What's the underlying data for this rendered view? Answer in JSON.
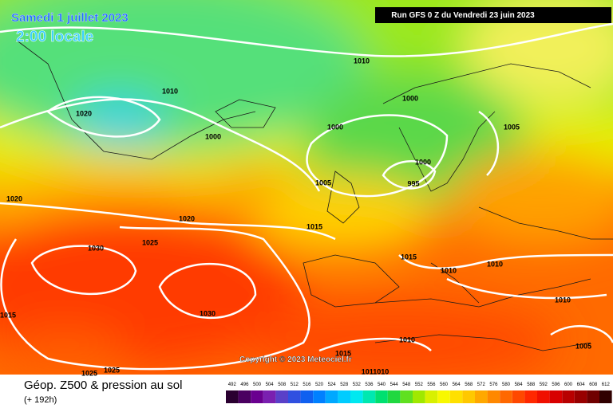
{
  "header": {
    "date": "Samedi 1 juillet 2023",
    "time": "2:00 locale",
    "run": "Run GFS 0 Z du Vendredi 23 juin 2023"
  },
  "copyright": "Copyright © 2023 Meteociel.fr",
  "footer": {
    "title": "Géop. Z500 & pression au sol",
    "lead": "(+ 192h)"
  },
  "scale": [
    492,
    496,
    500,
    504,
    508,
    512,
    516,
    520,
    524,
    528,
    532,
    536,
    540,
    544,
    548,
    552,
    556,
    560,
    564,
    568,
    572,
    576,
    580,
    584,
    588,
    592,
    596,
    600,
    604,
    608,
    612
  ],
  "isobars": [
    1010,
    1010,
    1020,
    1000,
    1000,
    1000,
    1005,
    1000,
    995,
    1005,
    1020,
    1020,
    1015,
    1025,
    1030,
    1015,
    1010,
    1010,
    1030,
    1010,
    1015,
    1010,
    1005,
    1025,
    1025,
    "1011010",
    1015
  ]
}
